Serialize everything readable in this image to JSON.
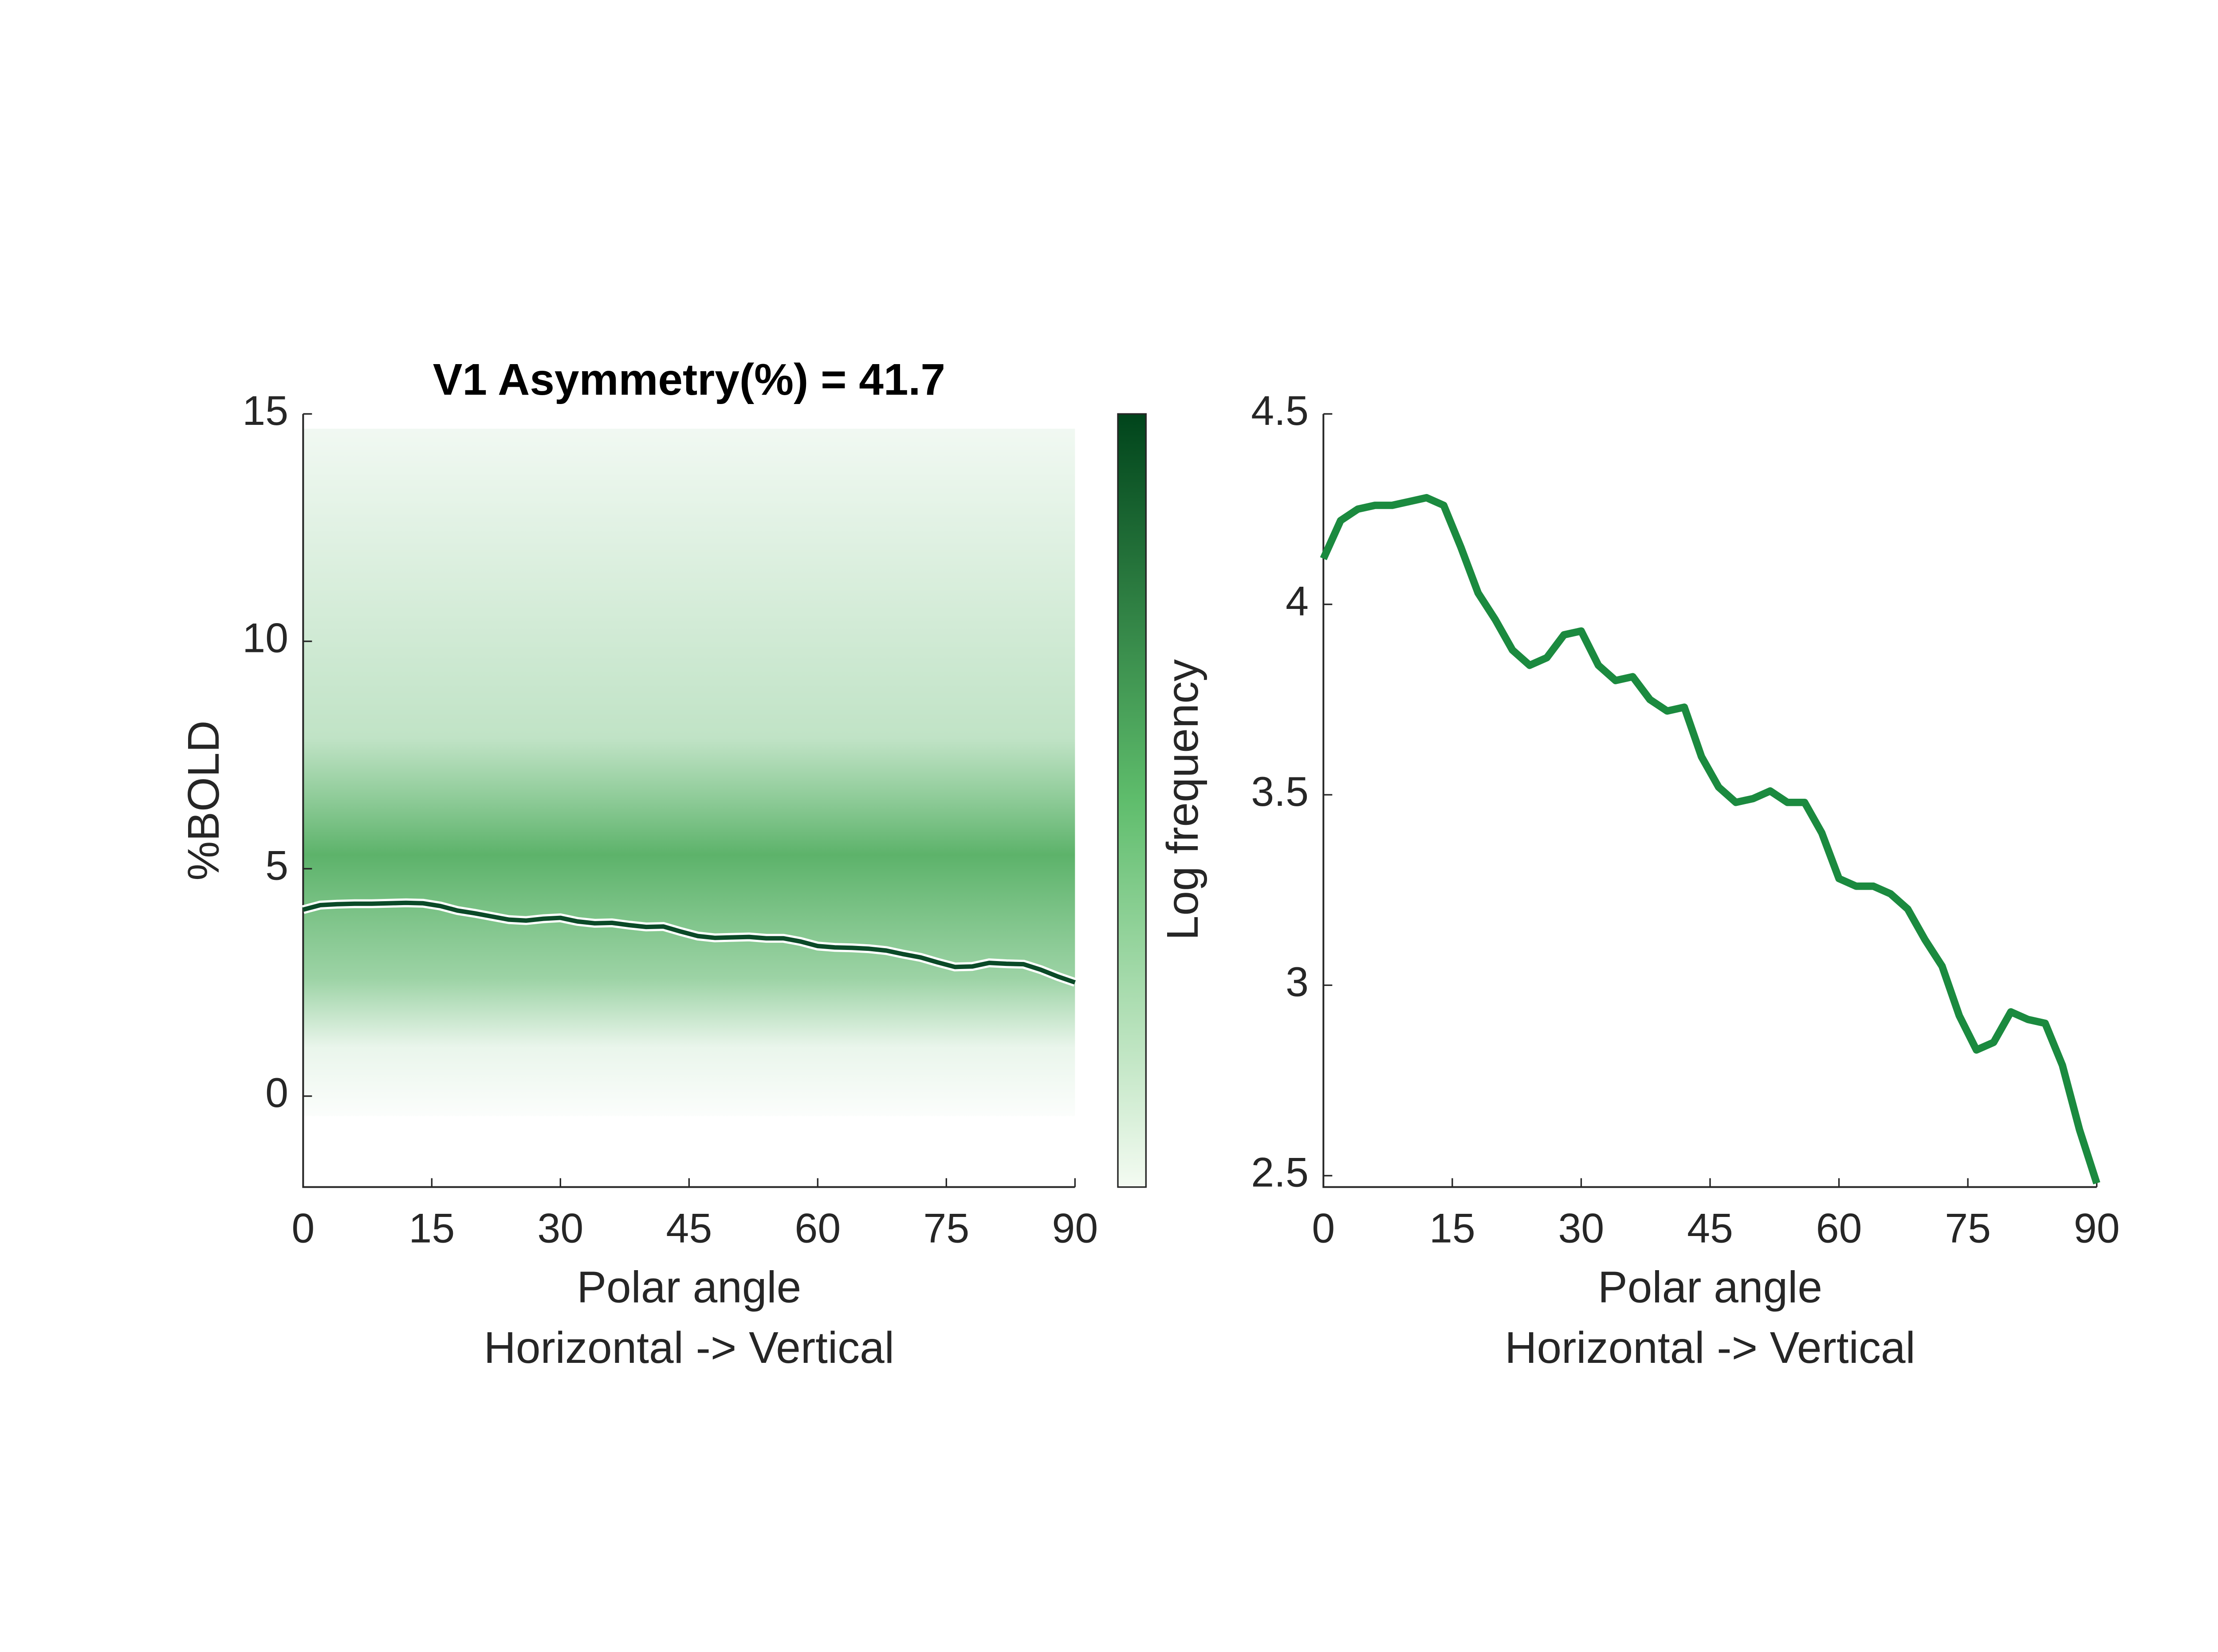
{
  "chart_data": [
    {
      "type": "density-line",
      "title": "V1 Asymmetry(%) = 41.7",
      "ylabel": "%BOLD",
      "xlabel": [
        "Polar angle",
        "Horizontal      ->      Vertical"
      ],
      "colorbar_label": "Log frequency",
      "x": [
        0,
        2,
        4,
        6,
        8,
        10,
        12,
        14,
        16,
        18,
        20,
        22,
        24,
        26,
        28,
        30,
        32,
        34,
        36,
        38,
        40,
        42,
        44,
        46,
        48,
        50,
        52,
        54,
        56,
        58,
        60,
        62,
        64,
        66,
        68,
        70,
        72,
        74,
        76,
        78,
        80,
        82,
        84,
        86,
        88,
        90
      ],
      "series": [
        {
          "color": "#0b4a28",
          "values": [
            4.1,
            4.2,
            4.22,
            4.23,
            4.23,
            4.24,
            4.25,
            4.24,
            4.18,
            4.08,
            4.02,
            3.95,
            3.88,
            3.86,
            3.9,
            3.92,
            3.84,
            3.8,
            3.81,
            3.76,
            3.72,
            3.73,
            3.62,
            3.52,
            3.48,
            3.49,
            3.5,
            3.47,
            3.47,
            3.4,
            3.3,
            3.27,
            3.26,
            3.24,
            3.2,
            3.12,
            3.05,
            2.94,
            2.84,
            2.85,
            2.93,
            2.91,
            2.9,
            2.78,
            2.63,
            2.5
          ]
        }
      ],
      "xlim": [
        0,
        90
      ],
      "xticks": [
        0,
        15,
        30,
        45,
        60,
        75,
        90
      ],
      "ylim": [
        -2,
        15
      ],
      "yticks": [
        0,
        5,
        10,
        15
      ]
    },
    {
      "type": "line",
      "xlabel": [
        "Polar angle",
        "Horizontal      ->      Vertical"
      ],
      "x": [
        0,
        2,
        4,
        6,
        8,
        10,
        12,
        14,
        16,
        18,
        20,
        22,
        24,
        26,
        28,
        30,
        32,
        34,
        36,
        38,
        40,
        42,
        44,
        46,
        48,
        50,
        52,
        54,
        56,
        58,
        60,
        62,
        64,
        66,
        68,
        70,
        72,
        74,
        76,
        78,
        80,
        82,
        84,
        86,
        88,
        90
      ],
      "series": [
        {
          "color": "#1b8a3f",
          "values": [
            4.12,
            4.22,
            4.25,
            4.26,
            4.26,
            4.27,
            4.28,
            4.26,
            4.15,
            4.03,
            3.96,
            3.88,
            3.84,
            3.86,
            3.92,
            3.93,
            3.84,
            3.8,
            3.81,
            3.75,
            3.72,
            3.73,
            3.6,
            3.52,
            3.48,
            3.49,
            3.51,
            3.48,
            3.48,
            3.4,
            3.28,
            3.26,
            3.26,
            3.24,
            3.2,
            3.12,
            3.05,
            2.92,
            2.83,
            2.85,
            2.93,
            2.91,
            2.9,
            2.79,
            2.62,
            2.48
          ]
        }
      ],
      "xlim": [
        0,
        90
      ],
      "xticks": [
        0,
        15,
        30,
        45,
        60,
        75,
        90
      ],
      "ylim": [
        2.47,
        4.5
      ],
      "yticks": [
        2.5,
        3,
        3.5,
        4,
        4.5
      ]
    }
  ]
}
